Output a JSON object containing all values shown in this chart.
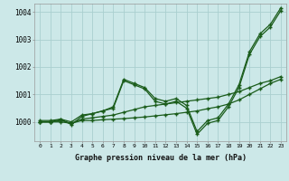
{
  "bg_color": "#cce8e8",
  "grid_color": "#aacfcf",
  "line_color": "#1a5c1a",
  "xlabel": "Graphe pression niveau de la mer (hPa)",
  "xlim": [
    -0.5,
    23.5
  ],
  "ylim": [
    999.3,
    1004.3
  ],
  "yticks": [
    1000,
    1001,
    1002,
    1003,
    1004
  ],
  "xticks": [
    0,
    1,
    2,
    3,
    4,
    5,
    6,
    7,
    8,
    9,
    10,
    11,
    12,
    13,
    14,
    15,
    16,
    17,
    18,
    19,
    20,
    21,
    22,
    23
  ],
  "s1_x": [
    0,
    1,
    2,
    3,
    4,
    5,
    6,
    7,
    8,
    9,
    10,
    11,
    12,
    13,
    14,
    15,
    16,
    17,
    18,
    19,
    20,
    21,
    22,
    23
  ],
  "s1_y": [
    1000.0,
    1000.0,
    1000.1,
    999.9,
    1000.2,
    1000.3,
    1000.4,
    1000.5,
    1001.5,
    1001.35,
    1001.2,
    1000.75,
    1000.65,
    1000.75,
    1000.5,
    999.55,
    999.95,
    1000.05,
    1000.55,
    1001.25,
    1002.45,
    1003.1,
    1003.45,
    1004.05
  ],
  "s2_x": [
    0,
    1,
    2,
    3,
    4,
    5,
    6,
    7,
    8,
    9,
    10,
    11,
    12,
    13,
    14,
    15,
    16,
    17,
    18,
    19,
    20,
    21,
    22,
    23
  ],
  "s2_y": [
    1000.05,
    1000.05,
    1000.1,
    1000.0,
    1000.25,
    1000.3,
    1000.4,
    1000.55,
    1001.55,
    1001.4,
    1001.25,
    1000.85,
    1000.75,
    1000.85,
    1000.6,
    999.65,
    1000.05,
    1000.15,
    1000.65,
    1001.35,
    1002.55,
    1003.2,
    1003.55,
    1004.15
  ],
  "s3_x": [
    0,
    1,
    2,
    3,
    4,
    5,
    6,
    7,
    8,
    9,
    10,
    11,
    12,
    13,
    14,
    15,
    16,
    17,
    18,
    19,
    20,
    21,
    22,
    23
  ],
  "s3_y": [
    1000.0,
    1000.0,
    1000.05,
    999.95,
    1000.1,
    1000.15,
    1000.2,
    1000.25,
    1000.35,
    1000.45,
    1000.55,
    1000.6,
    1000.65,
    1000.7,
    1000.75,
    1000.8,
    1000.85,
    1000.9,
    1001.0,
    1001.1,
    1001.25,
    1001.4,
    1001.5,
    1001.65
  ],
  "s4_x": [
    0,
    1,
    2,
    3,
    4,
    5,
    6,
    7,
    8,
    9,
    10,
    11,
    12,
    13,
    14,
    15,
    16,
    17,
    18,
    19,
    20,
    21,
    22,
    23
  ],
  "s4_y": [
    1000.0,
    1000.0,
    1000.0,
    999.95,
    1000.05,
    1000.05,
    1000.08,
    1000.1,
    1000.12,
    1000.15,
    1000.18,
    1000.22,
    1000.26,
    1000.3,
    1000.35,
    1000.4,
    1000.48,
    1000.55,
    1000.65,
    1000.8,
    1001.0,
    1001.2,
    1001.4,
    1001.55
  ]
}
